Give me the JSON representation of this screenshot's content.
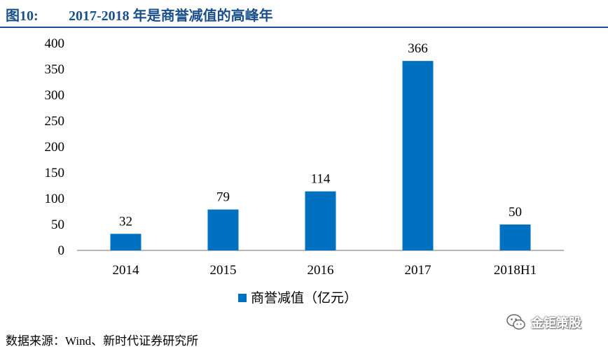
{
  "figure": {
    "label": "图10:",
    "title": "2017-2018 年是商誉减值的高峰年"
  },
  "source": "数据来源：Wind、新时代证券研究所",
  "watermark": {
    "text": "金钜策股",
    "icon": "wechat-icon"
  },
  "chart_data": {
    "type": "bar",
    "categories": [
      "2014",
      "2015",
      "2016",
      "2017",
      "2018H1"
    ],
    "series": [
      {
        "name": "商誉减值（亿元）",
        "values": [
          32,
          79,
          114,
          366,
          50
        ],
        "color": "#0070c0"
      }
    ],
    "yticks": [
      "0",
      "50",
      "100",
      "150",
      "200",
      "250",
      "300",
      "350",
      "400"
    ],
    "ylim": [
      0,
      400
    ],
    "legend": "bottom-center",
    "grid": false,
    "data_labels": true
  }
}
